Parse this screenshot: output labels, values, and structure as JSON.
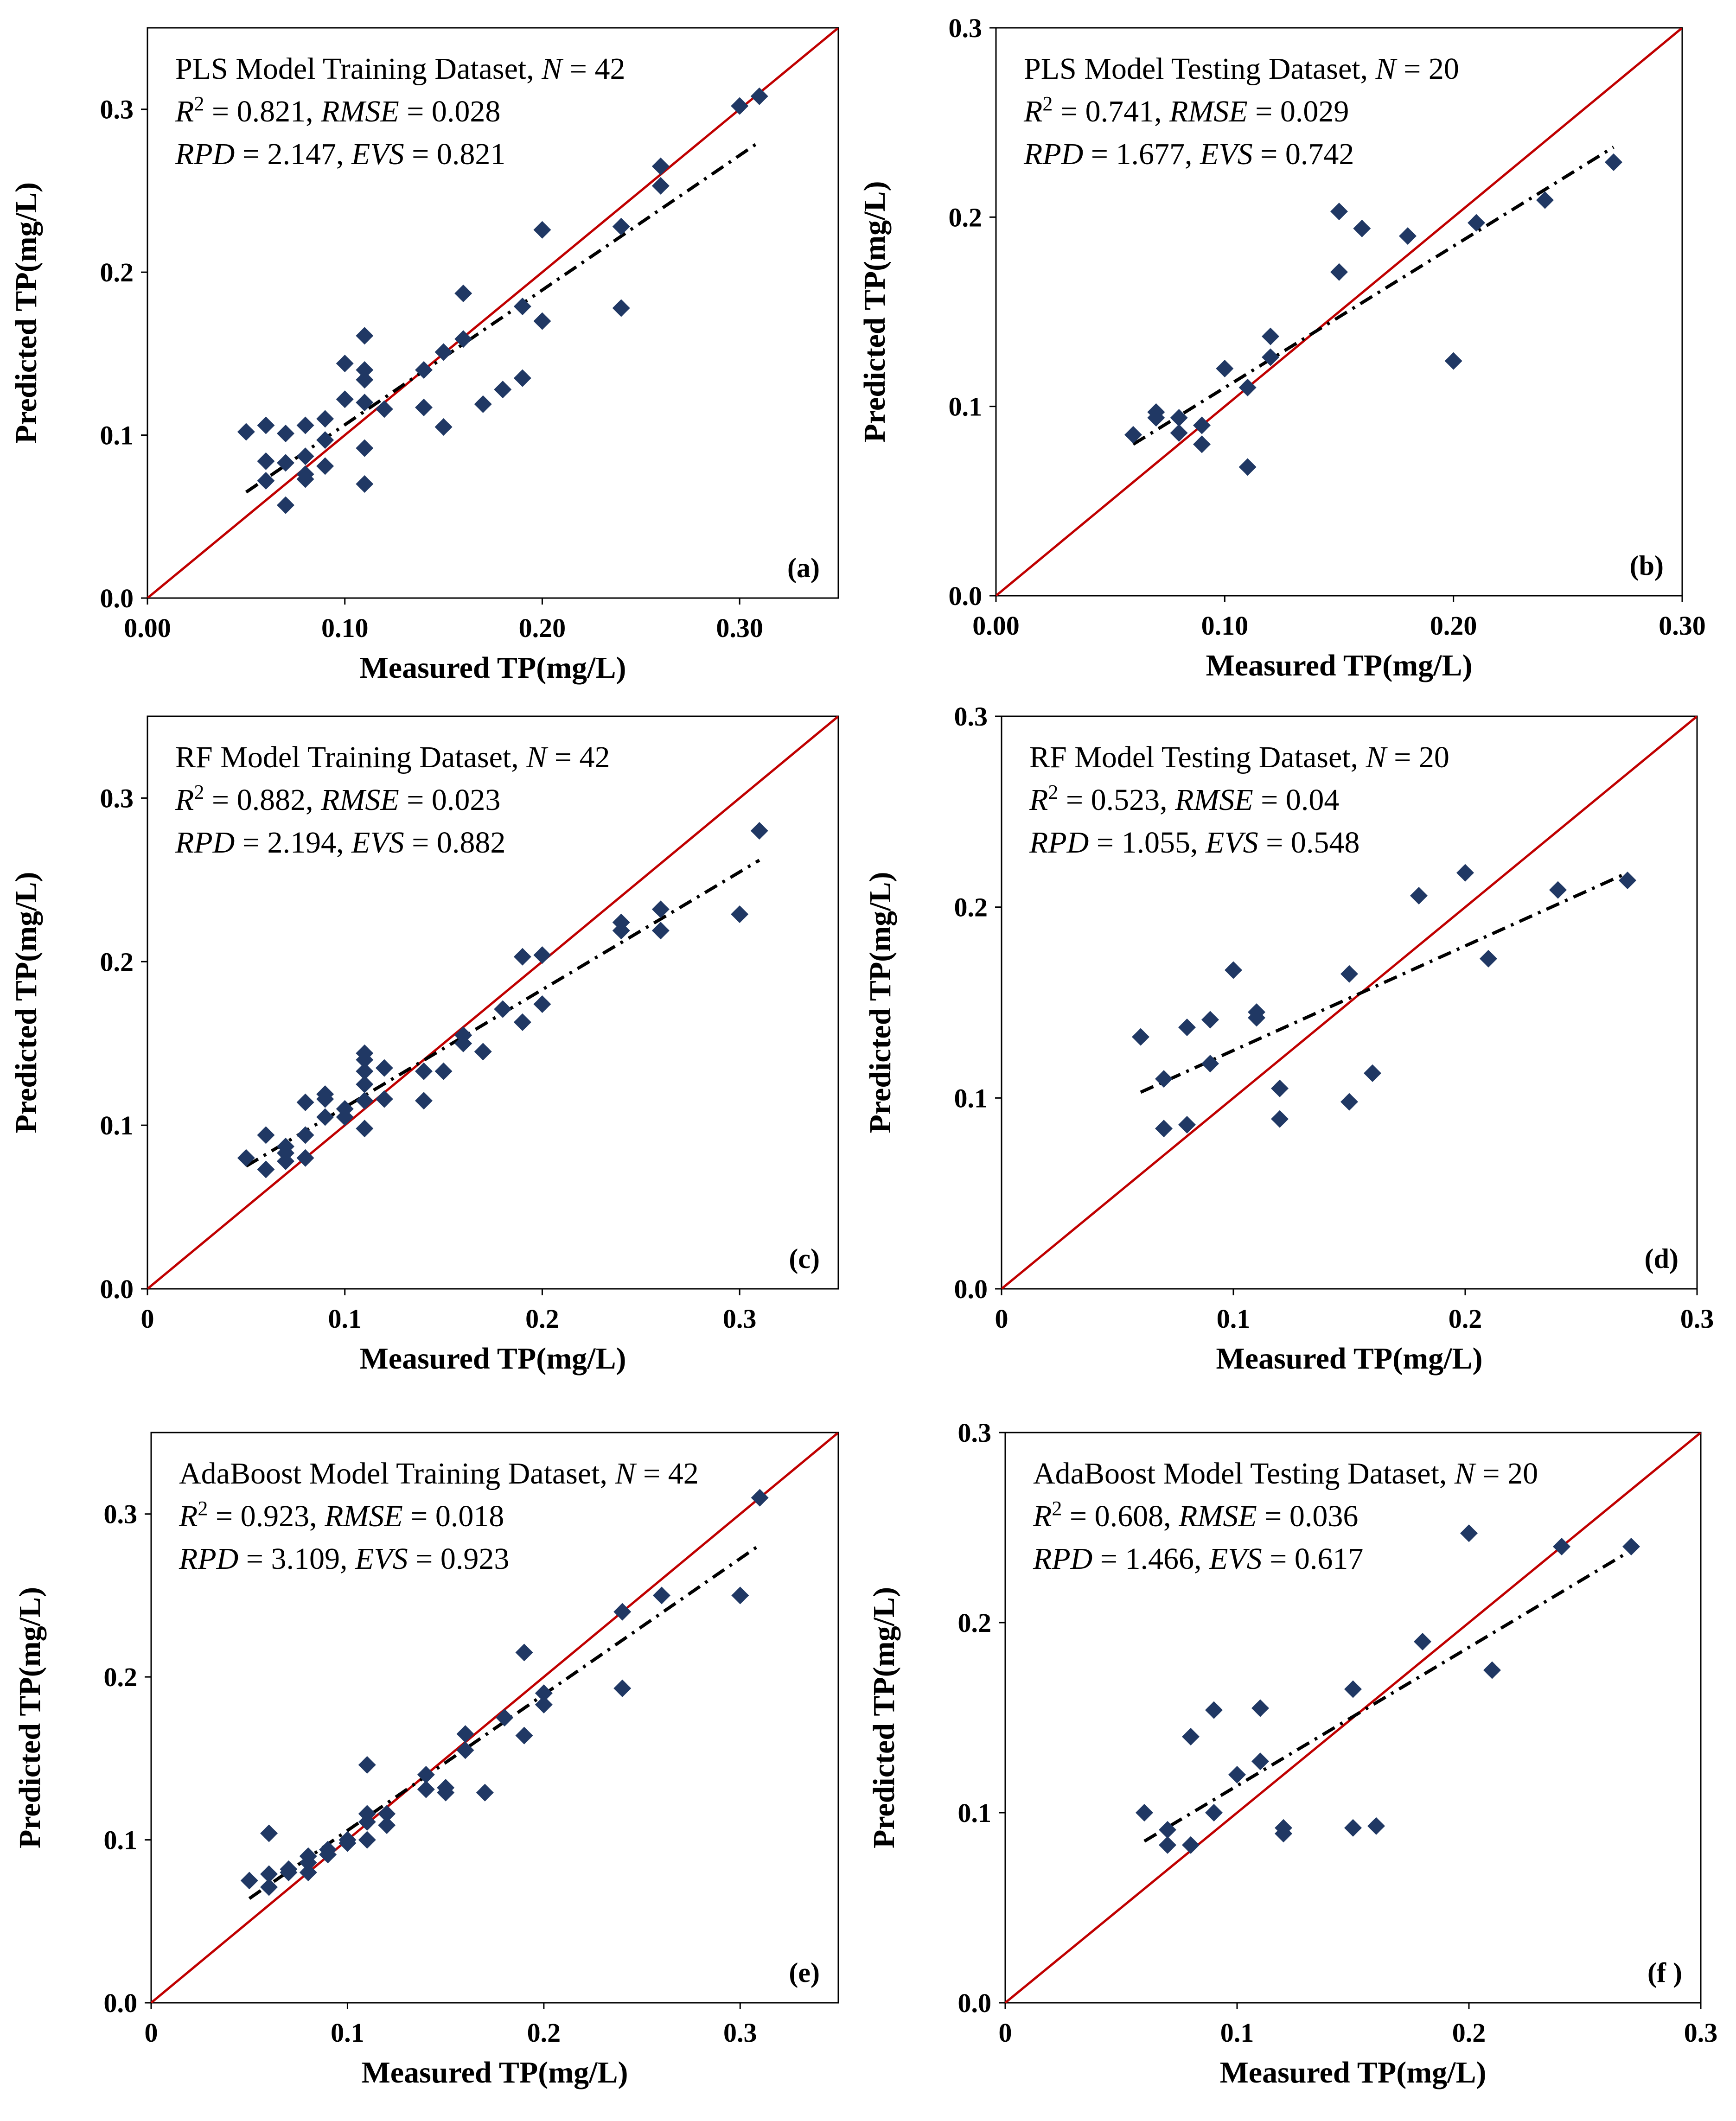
{
  "figure": {
    "colors": {
      "identity_line": "#C00000",
      "points": "#203864",
      "fit_line": "#000000",
      "fit_line_secondary": "#4F81BD",
      "frame": "#000000"
    }
  },
  "chart_data": [
    {
      "type": "scatter",
      "panel_label": "(a)",
      "ylabel": "Predicted TP(mg/L)",
      "xlabel": "Measured TP(mg/L)",
      "xlim": [
        0,
        0.35
      ],
      "ylim": [
        0,
        0.35
      ],
      "xticks": [
        "0.00",
        "0.10",
        "0.20",
        "0.30"
      ],
      "xtick_values": [
        0,
        0.1,
        0.2,
        0.3
      ],
      "yticks": [
        "0.0",
        "0.1",
        "0.2",
        "0.3"
      ],
      "ytick_values": [
        0,
        0.1,
        0.2,
        0.3
      ],
      "annotation": {
        "title_pre": "PLS Model Training Dataset, ",
        "n_value": "42",
        "r2": "0.821",
        "rmse": "0.028",
        "rpd": "2.147",
        "evs": "0.821"
      },
      "points": [
        [
          0.05,
          0.102
        ],
        [
          0.06,
          0.106
        ],
        [
          0.06,
          0.084
        ],
        [
          0.06,
          0.072
        ],
        [
          0.07,
          0.101
        ],
        [
          0.07,
          0.083
        ],
        [
          0.07,
          0.057
        ],
        [
          0.08,
          0.106
        ],
        [
          0.08,
          0.087
        ],
        [
          0.08,
          0.076
        ],
        [
          0.08,
          0.073
        ],
        [
          0.09,
          0.11
        ],
        [
          0.09,
          0.097
        ],
        [
          0.09,
          0.081
        ],
        [
          0.1,
          0.144
        ],
        [
          0.1,
          0.122
        ],
        [
          0.11,
          0.161
        ],
        [
          0.11,
          0.14
        ],
        [
          0.11,
          0.134
        ],
        [
          0.11,
          0.12
        ],
        [
          0.11,
          0.092
        ],
        [
          0.11,
          0.07
        ],
        [
          0.12,
          0.116
        ],
        [
          0.14,
          0.14
        ],
        [
          0.14,
          0.117
        ],
        [
          0.15,
          0.151
        ],
        [
          0.15,
          0.105
        ],
        [
          0.16,
          0.187
        ],
        [
          0.16,
          0.159
        ],
        [
          0.17,
          0.119
        ],
        [
          0.18,
          0.128
        ],
        [
          0.19,
          0.179
        ],
        [
          0.19,
          0.135
        ],
        [
          0.2,
          0.226
        ],
        [
          0.2,
          0.17
        ],
        [
          0.24,
          0.228
        ],
        [
          0.24,
          0.178
        ],
        [
          0.26,
          0.265
        ],
        [
          0.26,
          0.253
        ],
        [
          0.3,
          0.302
        ],
        [
          0.31,
          0.308
        ]
      ],
      "fit_line": [
        [
          0.05,
          0.065
        ],
        [
          0.31,
          0.28
        ]
      ]
    },
    {
      "type": "scatter",
      "panel_label": "(b)",
      "ylabel": "Predicted TP(mg/L)",
      "xlabel": "Measured TP(mg/L)",
      "xlim": [
        0,
        0.3
      ],
      "ylim": [
        0,
        0.3
      ],
      "xticks": [
        "0.00",
        "0.10",
        "0.20",
        "0.30"
      ],
      "xtick_values": [
        0,
        0.1,
        0.2,
        0.3
      ],
      "yticks": [
        "0.0",
        "0.1",
        "0.2",
        "0.3"
      ],
      "ytick_values": [
        0,
        0.1,
        0.2,
        0.3
      ],
      "annotation": {
        "title_pre": "PLS Model Testing Dataset, ",
        "n_value": "20",
        "r2": "0.741",
        "rmse": "0.029",
        "rpd": "1.677",
        "evs": "0.742"
      },
      "points": [
        [
          0.06,
          0.085
        ],
        [
          0.07,
          0.097
        ],
        [
          0.07,
          0.094
        ],
        [
          0.08,
          0.086
        ],
        [
          0.08,
          0.094
        ],
        [
          0.09,
          0.08
        ],
        [
          0.09,
          0.09
        ],
        [
          0.1,
          0.12
        ],
        [
          0.11,
          0.11
        ],
        [
          0.11,
          0.068
        ],
        [
          0.12,
          0.137
        ],
        [
          0.12,
          0.126
        ],
        [
          0.15,
          0.203
        ],
        [
          0.15,
          0.171
        ],
        [
          0.16,
          0.194
        ],
        [
          0.18,
          0.19
        ],
        [
          0.2,
          0.124
        ],
        [
          0.21,
          0.197
        ],
        [
          0.24,
          0.209
        ],
        [
          0.27,
          0.229
        ]
      ],
      "fit_line": [
        [
          0.06,
          0.08
        ],
        [
          0.27,
          0.237
        ]
      ]
    },
    {
      "type": "scatter",
      "panel_label": "(c)",
      "ylabel": "Predicted TP(mg/L)",
      "xlabel": "Measured TP(mg/L)",
      "xlim": [
        0,
        0.35
      ],
      "ylim": [
        0,
        0.35
      ],
      "xticks": [
        "0",
        "0.1",
        "0.2",
        "0.3"
      ],
      "xtick_values": [
        0,
        0.1,
        0.2,
        0.3
      ],
      "yticks": [
        "0.0",
        "0.1",
        "0.2",
        "0.3"
      ],
      "ytick_values": [
        0,
        0.1,
        0.2,
        0.3
      ],
      "annotation": {
        "title_pre": "RF Model Training Dataset,  ",
        "n_value": "42",
        "r2": "0.882",
        "rmse": "0.023",
        "rpd": "2.194",
        "evs": "0.882"
      },
      "points": [
        [
          0.05,
          0.08
        ],
        [
          0.06,
          0.094
        ],
        [
          0.06,
          0.073
        ],
        [
          0.07,
          0.087
        ],
        [
          0.07,
          0.083
        ],
        [
          0.07,
          0.078
        ],
        [
          0.08,
          0.114
        ],
        [
          0.08,
          0.094
        ],
        [
          0.08,
          0.08
        ],
        [
          0.09,
          0.119
        ],
        [
          0.09,
          0.116
        ],
        [
          0.09,
          0.105
        ],
        [
          0.1,
          0.11
        ],
        [
          0.1,
          0.105
        ],
        [
          0.11,
          0.144
        ],
        [
          0.11,
          0.14
        ],
        [
          0.11,
          0.133
        ],
        [
          0.11,
          0.125
        ],
        [
          0.11,
          0.115
        ],
        [
          0.11,
          0.098
        ],
        [
          0.12,
          0.135
        ],
        [
          0.12,
          0.116
        ],
        [
          0.14,
          0.133
        ],
        [
          0.14,
          0.115
        ],
        [
          0.15,
          0.133
        ],
        [
          0.16,
          0.155
        ],
        [
          0.16,
          0.15
        ],
        [
          0.17,
          0.145
        ],
        [
          0.18,
          0.171
        ],
        [
          0.19,
          0.203
        ],
        [
          0.19,
          0.163
        ],
        [
          0.2,
          0.204
        ],
        [
          0.2,
          0.174
        ],
        [
          0.24,
          0.224
        ],
        [
          0.24,
          0.219
        ],
        [
          0.26,
          0.232
        ],
        [
          0.26,
          0.219
        ],
        [
          0.3,
          0.229
        ],
        [
          0.31,
          0.28
        ]
      ],
      "fit_line": [
        [
          0.05,
          0.075
        ],
        [
          0.31,
          0.262
        ]
      ]
    },
    {
      "type": "scatter",
      "panel_label": "(d)",
      "ylabel": "Predicted TP(mg/L)",
      "xlabel": "Measured TP(mg/L)",
      "xlim": [
        0,
        0.3
      ],
      "ylim": [
        0,
        0.3
      ],
      "xticks": [
        "0",
        "0.1",
        "0.2",
        "0.3"
      ],
      "xtick_values": [
        0,
        0.1,
        0.2,
        0.3
      ],
      "yticks": [
        "0.0",
        "0.1",
        "0.2",
        "0.3"
      ],
      "ytick_values": [
        0,
        0.1,
        0.2,
        0.3
      ],
      "annotation": {
        "title_pre": "RF Model Testing Dataset, ",
        "n_value": "20",
        "r2": "0.523",
        "rmse": "0.04",
        "rpd": "1.055",
        "evs": "0.548"
      },
      "points": [
        [
          0.06,
          0.132
        ],
        [
          0.07,
          0.11
        ],
        [
          0.07,
          0.084
        ],
        [
          0.08,
          0.137
        ],
        [
          0.08,
          0.086
        ],
        [
          0.09,
          0.141
        ],
        [
          0.09,
          0.118
        ],
        [
          0.1,
          0.167
        ],
        [
          0.11,
          0.145
        ],
        [
          0.11,
          0.142
        ],
        [
          0.12,
          0.105
        ],
        [
          0.12,
          0.089
        ],
        [
          0.15,
          0.165
        ],
        [
          0.15,
          0.098
        ],
        [
          0.16,
          0.113
        ],
        [
          0.18,
          0.206
        ],
        [
          0.2,
          0.218
        ],
        [
          0.21,
          0.173
        ],
        [
          0.24,
          0.209
        ],
        [
          0.27,
          0.214
        ]
      ],
      "fit_line": [
        [
          0.06,
          0.103
        ],
        [
          0.27,
          0.218
        ]
      ]
    },
    {
      "type": "scatter",
      "panel_label": "(e)",
      "ylabel": "Predicted TP(mg/L)",
      "xlabel": "Measured TP(mg/L)",
      "xlim": [
        0,
        0.35
      ],
      "ylim": [
        0,
        0.35
      ],
      "xticks": [
        "0",
        "0.1",
        "0.2",
        "0.3"
      ],
      "xtick_values": [
        0,
        0.1,
        0.2,
        0.3
      ],
      "yticks": [
        "0.0",
        "0.1",
        "0.2",
        "0.3"
      ],
      "ytick_values": [
        0,
        0.1,
        0.2,
        0.3
      ],
      "annotation": {
        "title_pre": "AdaBoost Model Training Dataset, ",
        "n_value": "42",
        "r2": "0.923",
        "rmse": "0.018",
        "rpd": "3.109",
        "evs": "0.923"
      },
      "points": [
        [
          0.05,
          0.075
        ],
        [
          0.06,
          0.104
        ],
        [
          0.06,
          0.079
        ],
        [
          0.06,
          0.071
        ],
        [
          0.07,
          0.082
        ],
        [
          0.07,
          0.08
        ],
        [
          0.08,
          0.09
        ],
        [
          0.08,
          0.086
        ],
        [
          0.08,
          0.08
        ],
        [
          0.09,
          0.094
        ],
        [
          0.09,
          0.091
        ],
        [
          0.1,
          0.1
        ],
        [
          0.1,
          0.098
        ],
        [
          0.11,
          0.146
        ],
        [
          0.11,
          0.116
        ],
        [
          0.11,
          0.111
        ],
        [
          0.11,
          0.1
        ],
        [
          0.12,
          0.116
        ],
        [
          0.12,
          0.109
        ],
        [
          0.14,
          0.14
        ],
        [
          0.14,
          0.131
        ],
        [
          0.15,
          0.132
        ],
        [
          0.15,
          0.129
        ],
        [
          0.16,
          0.165
        ],
        [
          0.16,
          0.155
        ],
        [
          0.17,
          0.129
        ],
        [
          0.18,
          0.175
        ],
        [
          0.19,
          0.215
        ],
        [
          0.19,
          0.164
        ],
        [
          0.2,
          0.19
        ],
        [
          0.2,
          0.183
        ],
        [
          0.24,
          0.24
        ],
        [
          0.24,
          0.193
        ],
        [
          0.26,
          0.25
        ],
        [
          0.3,
          0.25
        ],
        [
          0.31,
          0.31
        ]
      ],
      "fit_line": [
        [
          0.05,
          0.064
        ],
        [
          0.31,
          0.281
        ]
      ]
    },
    {
      "type": "scatter",
      "panel_label": "(f )",
      "ylabel": "Predicted TP(mg/L)",
      "xlabel": "Measured TP(mg/L)",
      "xlim": [
        0,
        0.3
      ],
      "ylim": [
        0,
        0.3
      ],
      "xticks": [
        "0",
        "0.1",
        "0.2",
        "0.3"
      ],
      "xtick_values": [
        0,
        0.1,
        0.2,
        0.3
      ],
      "yticks": [
        "0.0",
        "0.1",
        "0.2",
        "0.3"
      ],
      "ytick_values": [
        0,
        0.1,
        0.2,
        0.3
      ],
      "annotation": {
        "title_pre": "AdaBoost Model Testing Dataset, ",
        "n_value": "20",
        "r2": "0.608",
        "rmse": "0.036",
        "rpd": "1.466",
        "evs": "0.617"
      },
      "points": [
        [
          0.06,
          0.1
        ],
        [
          0.07,
          0.091
        ],
        [
          0.07,
          0.083
        ],
        [
          0.08,
          0.14
        ],
        [
          0.08,
          0.083
        ],
        [
          0.09,
          0.154
        ],
        [
          0.09,
          0.1
        ],
        [
          0.1,
          0.12
        ],
        [
          0.11,
          0.155
        ],
        [
          0.11,
          0.127
        ],
        [
          0.12,
          0.092
        ],
        [
          0.12,
          0.089
        ],
        [
          0.15,
          0.165
        ],
        [
          0.15,
          0.092
        ],
        [
          0.16,
          0.093
        ],
        [
          0.18,
          0.19
        ],
        [
          0.2,
          0.247
        ],
        [
          0.21,
          0.175
        ],
        [
          0.24,
          0.24
        ],
        [
          0.27,
          0.24
        ]
      ],
      "fit_line": [
        [
          0.06,
          0.085
        ],
        [
          0.27,
          0.238
        ]
      ]
    }
  ]
}
